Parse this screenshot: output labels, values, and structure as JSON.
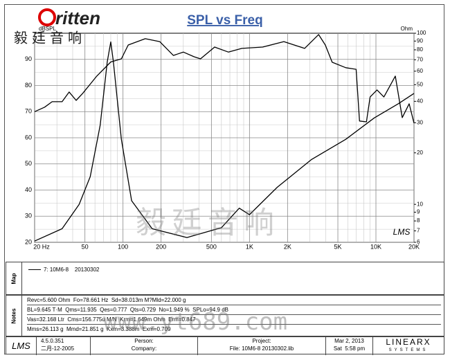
{
  "chart_data": {
    "type": "line",
    "title": "SPL vs Freq",
    "y_label": "dBSPL",
    "y2_label": "Ohm",
    "annotation": "LMS",
    "xscale": "log",
    "y2scale": "log",
    "grid": true,
    "xlim": [
      20,
      20000
    ],
    "ylim": [
      20,
      100
    ],
    "y2lim": [
      6,
      100
    ],
    "xticks": [
      {
        "value": 20,
        "label": "20 Hz"
      },
      50,
      100,
      200,
      500,
      {
        "value": 1000,
        "label": "1K"
      },
      {
        "value": 2000,
        "label": "2K"
      },
      {
        "value": 5000,
        "label": "5K"
      },
      {
        "value": 10000,
        "label": "10K"
      },
      {
        "value": 20000,
        "label": "20K"
      }
    ],
    "xminorticks": [
      30,
      40,
      60,
      70,
      80,
      90,
      300,
      400,
      600,
      700,
      800,
      900,
      3000,
      4000,
      6000,
      7000,
      8000,
      9000
    ],
    "yticks": [
      20,
      30,
      40,
      50,
      60,
      70,
      80,
      90
    ],
    "yminorticks": [
      25,
      35,
      45,
      55,
      65,
      75,
      85,
      95
    ],
    "y2ticks": [
      6,
      7,
      8,
      9,
      10,
      20,
      30,
      40,
      50,
      60,
      70,
      80,
      90,
      100
    ],
    "series": [
      {
        "name": "7: 10M6-8    20130302",
        "color": "#000000",
        "x": [
          20,
          24,
          27.5,
          33,
          37.5,
          42.6,
          48,
          62,
          80,
          97,
          110,
          150,
          195,
          250,
          300,
          365,
          410,
          530,
          680,
          870,
          1270,
          1870,
          2730,
          3520,
          3980,
          4510,
          5780,
          6970,
          7420,
          8410,
          8990,
          10200,
          11560,
          14230,
          16140,
          18300,
          20000
        ],
        "values": [
          70,
          71.7,
          73.8,
          73.8,
          77.5,
          74.3,
          77,
          83.6,
          89,
          90.2,
          95.5,
          97.9,
          96.8,
          91.5,
          92.8,
          91,
          90.2,
          94.7,
          92.8,
          94.2,
          94.7,
          96.8,
          94.2,
          99.5,
          95.5,
          88.9,
          86.8,
          86.2,
          66.4,
          66.1,
          75.6,
          78.3,
          75.6,
          83.6,
          67.7,
          73,
          65.6
        ]
      },
      {
        "color": "#000000",
        "axis": "y2",
        "x": [
          20,
          33,
          45,
          55,
          66,
          75,
          80,
          84,
          97,
          117,
          170,
          320,
          600,
          830,
          1000,
          1660,
          3100,
          5780,
          9700,
          15000,
          20000
        ],
        "values": [
          6.1,
          7.2,
          10,
          14.5,
          29,
          68,
          89,
          68,
          24,
          10.5,
          7.2,
          6.4,
          7.3,
          9.5,
          8.7,
          12.6,
          18.3,
          24,
          32,
          38.7,
          44.5
        ]
      }
    ]
  },
  "logo": {
    "brand": "ritten",
    "chinese": "毅廷音响"
  },
  "watermarks": [
    "毅廷音响",
    "www.yt689.com"
  ],
  "side_labels": {
    "map": "Map",
    "notes": "Notes"
  },
  "notes": [
    "Revc=5.600 Ohm  Fo=78.661 Hz  Sd=38.013m M?Mld=22.000 g",
    "BL=9.645 T·M  Qms=11.935  Qes=0.777  Qts=0.729  No=1.949 %  SPLo=94.9 dB",
    "Vas=32.168 Ltr  Cms=156.775u M/N  Krm=1.649m Ohm  Erm=0.847",
    "Mms=26.113 g  Mmd=21.851 g  Kxm=3.388m  Exm=0.709"
  ],
  "footer": {
    "lms": "LMS",
    "version": "4.5.0.351",
    "build_date": "二月-12-2005",
    "person": "Person:",
    "company": "Company:",
    "project": "Project:",
    "file": "File: 10M6-8 20130302.lib",
    "date": "Mar 2, 2013",
    "time": "Sat  5:58 pm",
    "vendor": "LINEARX",
    "vendor_sub": "SYSTEMS"
  }
}
